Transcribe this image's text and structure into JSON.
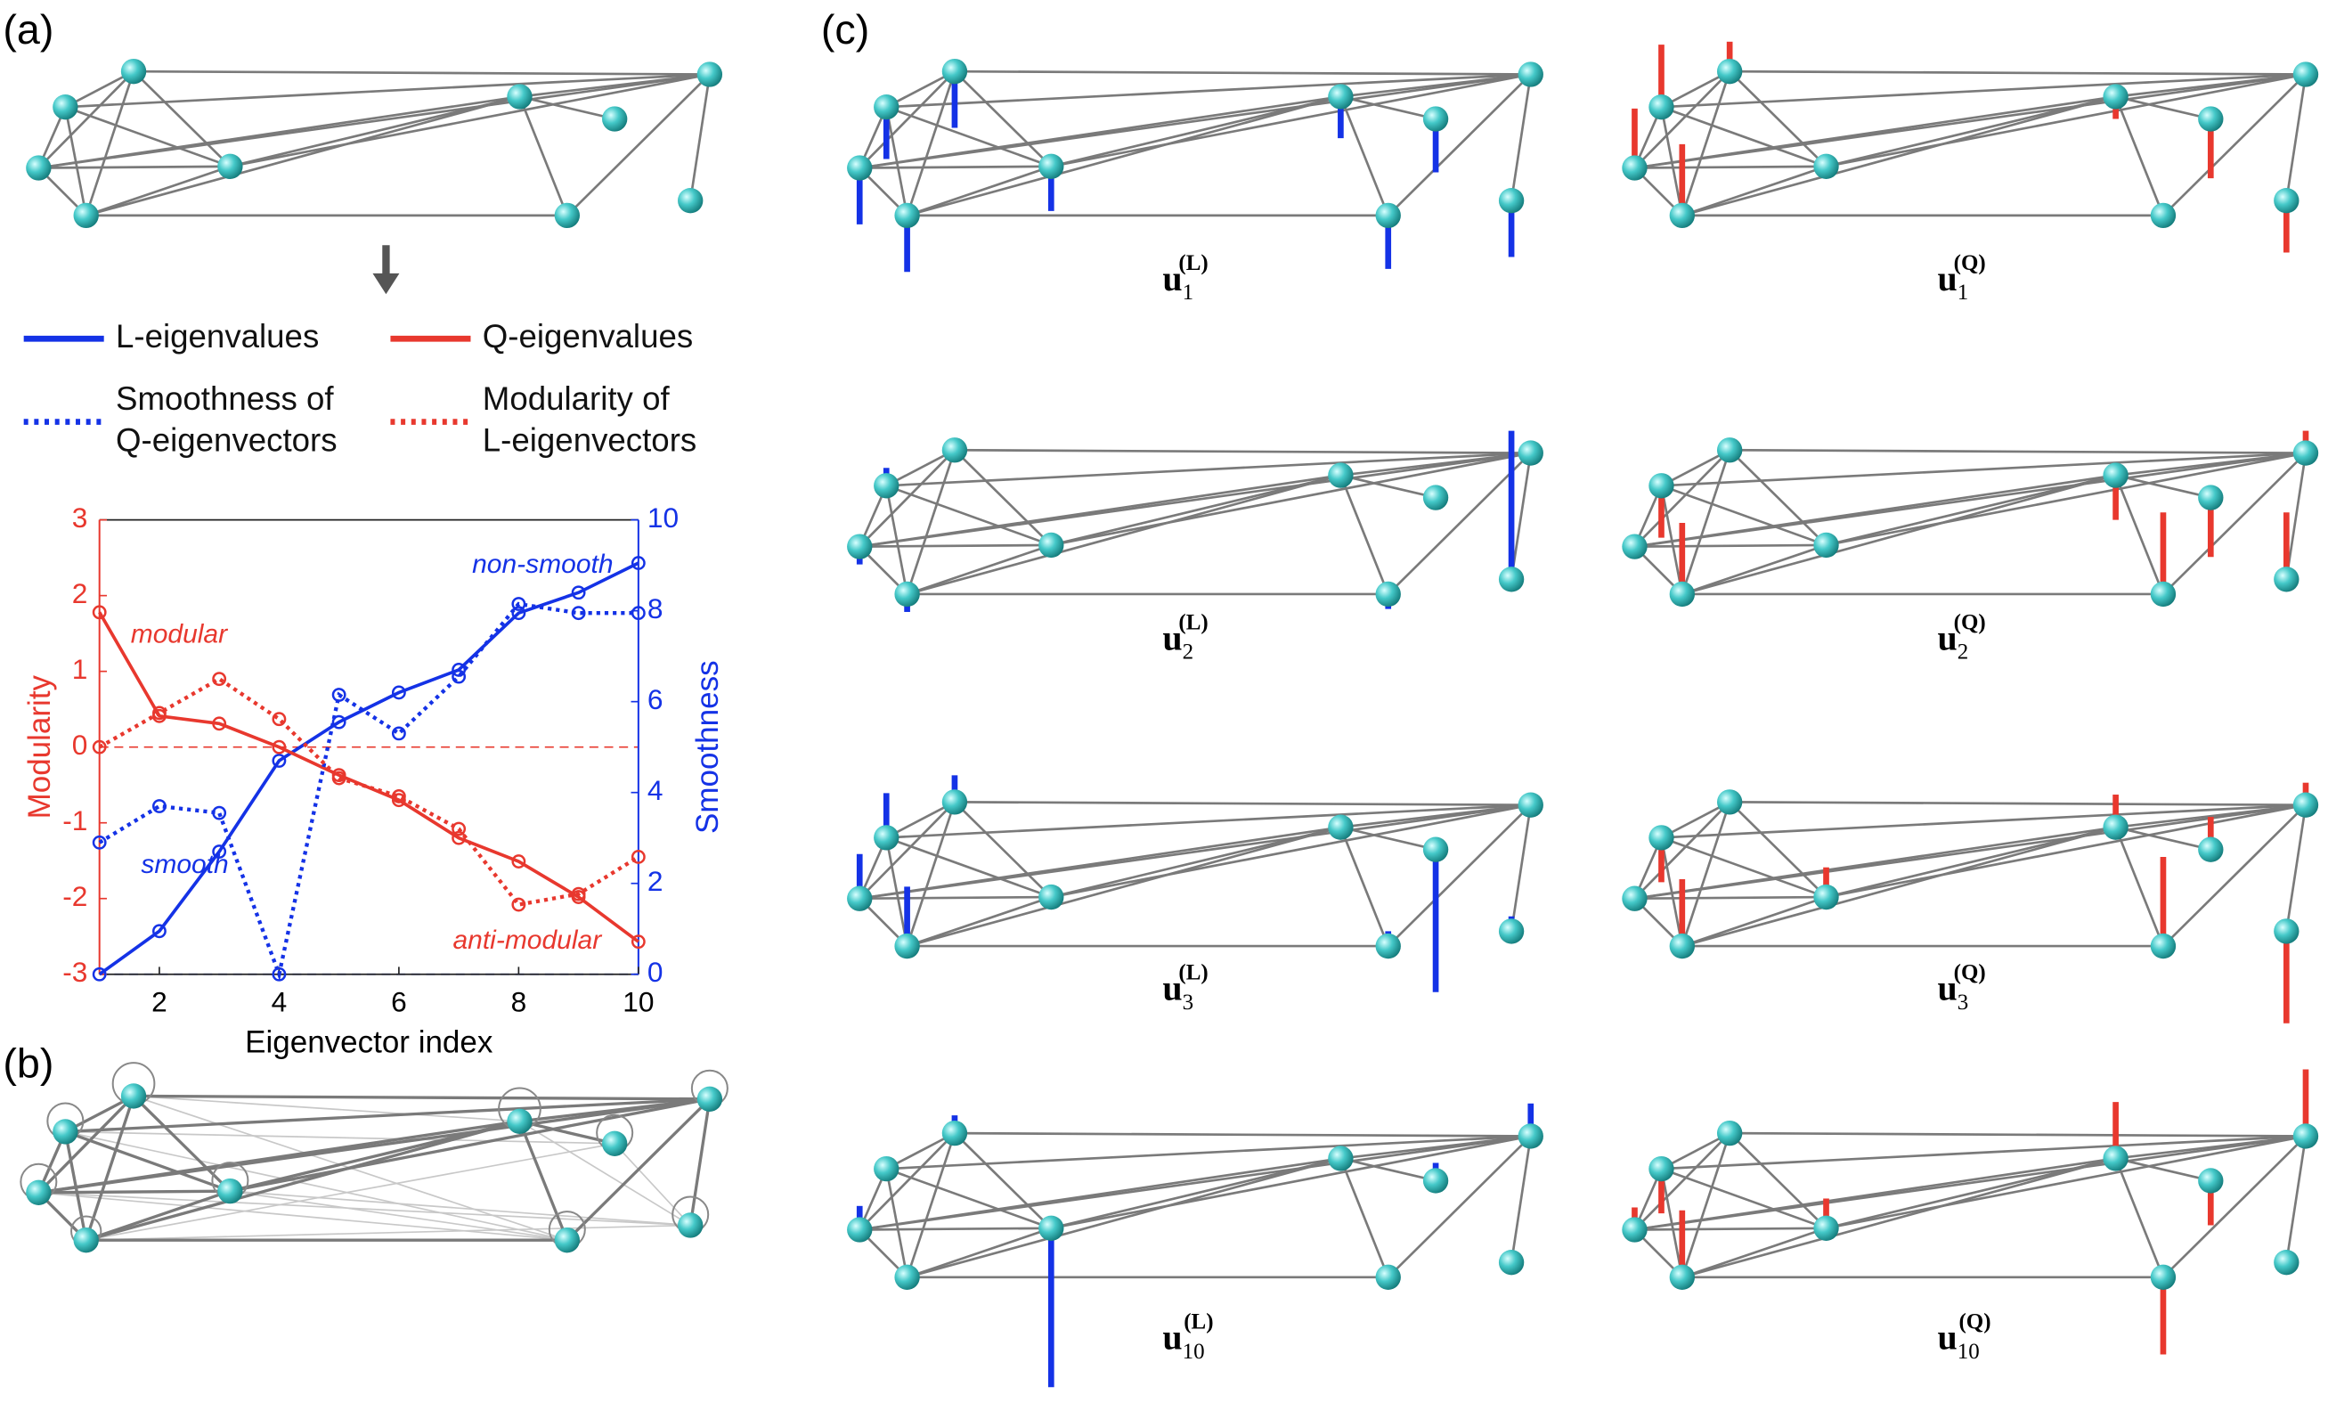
{
  "panel_labels": [
    "(a)",
    "(b)",
    "(c)"
  ],
  "eigenvector_labels": [
    {
      "base": "u",
      "sub": "1",
      "sup": "(L)"
    },
    {
      "base": "u",
      "sub": "1",
      "sup": "(Q)"
    },
    {
      "base": "u",
      "sub": "2",
      "sup": "(L)"
    },
    {
      "base": "u",
      "sub": "2",
      "sup": "(Q)"
    },
    {
      "base": "u",
      "sub": "3",
      "sup": "(L)"
    },
    {
      "base": "u",
      "sub": "3",
      "sup": "(Q)"
    },
    {
      "base": "u",
      "sub": "10",
      "sup": "(L)"
    },
    {
      "base": "u",
      "sub": "10",
      "sup": "(Q)"
    }
  ],
  "chart_data": {
    "type": "line",
    "xlabel": "Eigenvector index",
    "ylabel": "Modularity",
    "y2label": "Smoothness",
    "x": [
      1,
      2,
      3,
      4,
      5,
      6,
      7,
      8,
      9,
      10
    ],
    "xlim": [
      1,
      10
    ],
    "xticks": [
      2,
      4,
      6,
      8,
      10
    ],
    "ylim": [
      -3,
      3
    ],
    "yticks": [
      -3,
      -2,
      -1,
      0,
      1,
      2,
      3
    ],
    "y2lim": [
      0,
      10
    ],
    "y2ticks": [
      0,
      2,
      4,
      6,
      8,
      10
    ],
    "zero_lines": true,
    "series": [
      {
        "name": [
          "L-eigenvalues"
        ],
        "color": "#1432e6",
        "style": "solid",
        "axis": "y2",
        "values": [
          0,
          0.95,
          2.7,
          4.7,
          5.55,
          6.2,
          6.7,
          7.95,
          8.4,
          9.05
        ]
      },
      {
        "name": [
          "Q-eigenvalues"
        ],
        "color": "#e8382e",
        "style": "solid",
        "axis": "y",
        "values": [
          1.78,
          0.41,
          0.31,
          0,
          -0.37,
          -0.7,
          -1.2,
          -1.51,
          -1.98,
          -2.57
        ]
      },
      {
        "name": [
          "Smoothness of",
          "Q-eigenvectors"
        ],
        "color": "#1432e6",
        "style": "dotted",
        "axis": "y2",
        "values": [
          2.9,
          3.7,
          3.55,
          0,
          6.15,
          5.3,
          6.55,
          8.15,
          7.95,
          7.95
        ]
      },
      {
        "name": [
          "Modularity of",
          "L-eigenvectors"
        ],
        "color": "#e8382e",
        "style": "dotted",
        "axis": "y",
        "values": [
          0,
          0.45,
          0.9,
          0.37,
          -0.41,
          -0.65,
          -1.08,
          -2.08,
          -1.94,
          -1.45
        ]
      }
    ],
    "annotations": [
      {
        "text": "modular",
        "color": "#e8382e"
      },
      {
        "text": "smooth",
        "color": "#1432e6"
      },
      {
        "text": "non-smooth",
        "color": "#1432e6"
      },
      {
        "text": "anti-modular",
        "color": "#e8382e"
      }
    ]
  }
}
